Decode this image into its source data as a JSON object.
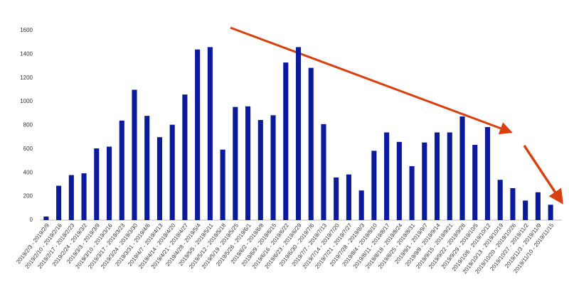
{
  "chart_data": {
    "type": "bar",
    "categories": [
      "2019/2/3 - 2019/2/9",
      "2019/2/10 - 2019/2/16",
      "2019/2/17 - 2019/2/23",
      "2019/2/24 - 2019/3/2",
      "2019/3/3 - 2019/3/9",
      "2019/3/10 - 2019/3/16",
      "2019/3/17 - 2019/3/23",
      "2019/3/24 - 2019/3/30",
      "2019/3/31 - 2019/4/6",
      "2019/4/7 - 2019/4/13",
      "2019/4/14 - 2019/4/20",
      "2019/4/21 - 2019/4/27",
      "2019/4/28 - 2019/5/4",
      "2019/5/5 - 2019/5/11",
      "2019/5/12 - 2019/5/18",
      "2019/5/19 - 2019/5/25",
      "2019/5/26 - 2019/6/1",
      "2019/6/2 - 2019/6/8",
      "2019/6/9 - 2019/6/15",
      "2019/6/16 - 2019/6/22",
      "2019/6/23 - 2019/6/29",
      "2019/6/30 - 2019/7/6",
      "2019/7/7 - 2019/7/13",
      "2019/7/14 - 2019/7/20",
      "2019/7/21 - 2019/7/27",
      "2019/7/28 - 2019/8/3",
      "2019/8/4 - 2019/8/10",
      "2019/8/11 - 2019/8/17",
      "2019/8/18 - 2019/8/24",
      "2019/8/25 - 2019/8/31",
      "2019/9/1 - 2019/9/7",
      "2019/9/8 - 2019/9/14",
      "2019/9/15 - 2019/9/21",
      "2019/9/22 - 2019/9/28",
      "2019/9/29 - 2019/10/5",
      "2019/10/6 - 2019/10/12",
      "2019/10/13 - 2019/10/19",
      "2019/10/20 - 2019/10/26",
      "2019/10/27 - 2019/11/2",
      "2019/11/3 - 2019/11/9",
      "2019/11/10 - 2019/11/15"
    ],
    "values": [
      30,
      290,
      380,
      395,
      605,
      620,
      840,
      1100,
      880,
      700,
      805,
      1060,
      1440,
      1460,
      595,
      955,
      960,
      845,
      885,
      1330,
      1460,
      1285,
      810,
      360,
      385,
      250,
      585,
      740,
      660,
      455,
      655,
      740,
      740,
      875,
      635,
      785,
      340,
      270,
      165,
      235,
      130
    ],
    "color": "#0b1a9a",
    "ylim": [
      0,
      1600
    ],
    "yticks": [
      0,
      200,
      400,
      600,
      800,
      1000,
      1200,
      1400,
      1600
    ],
    "grid": false
  }
}
